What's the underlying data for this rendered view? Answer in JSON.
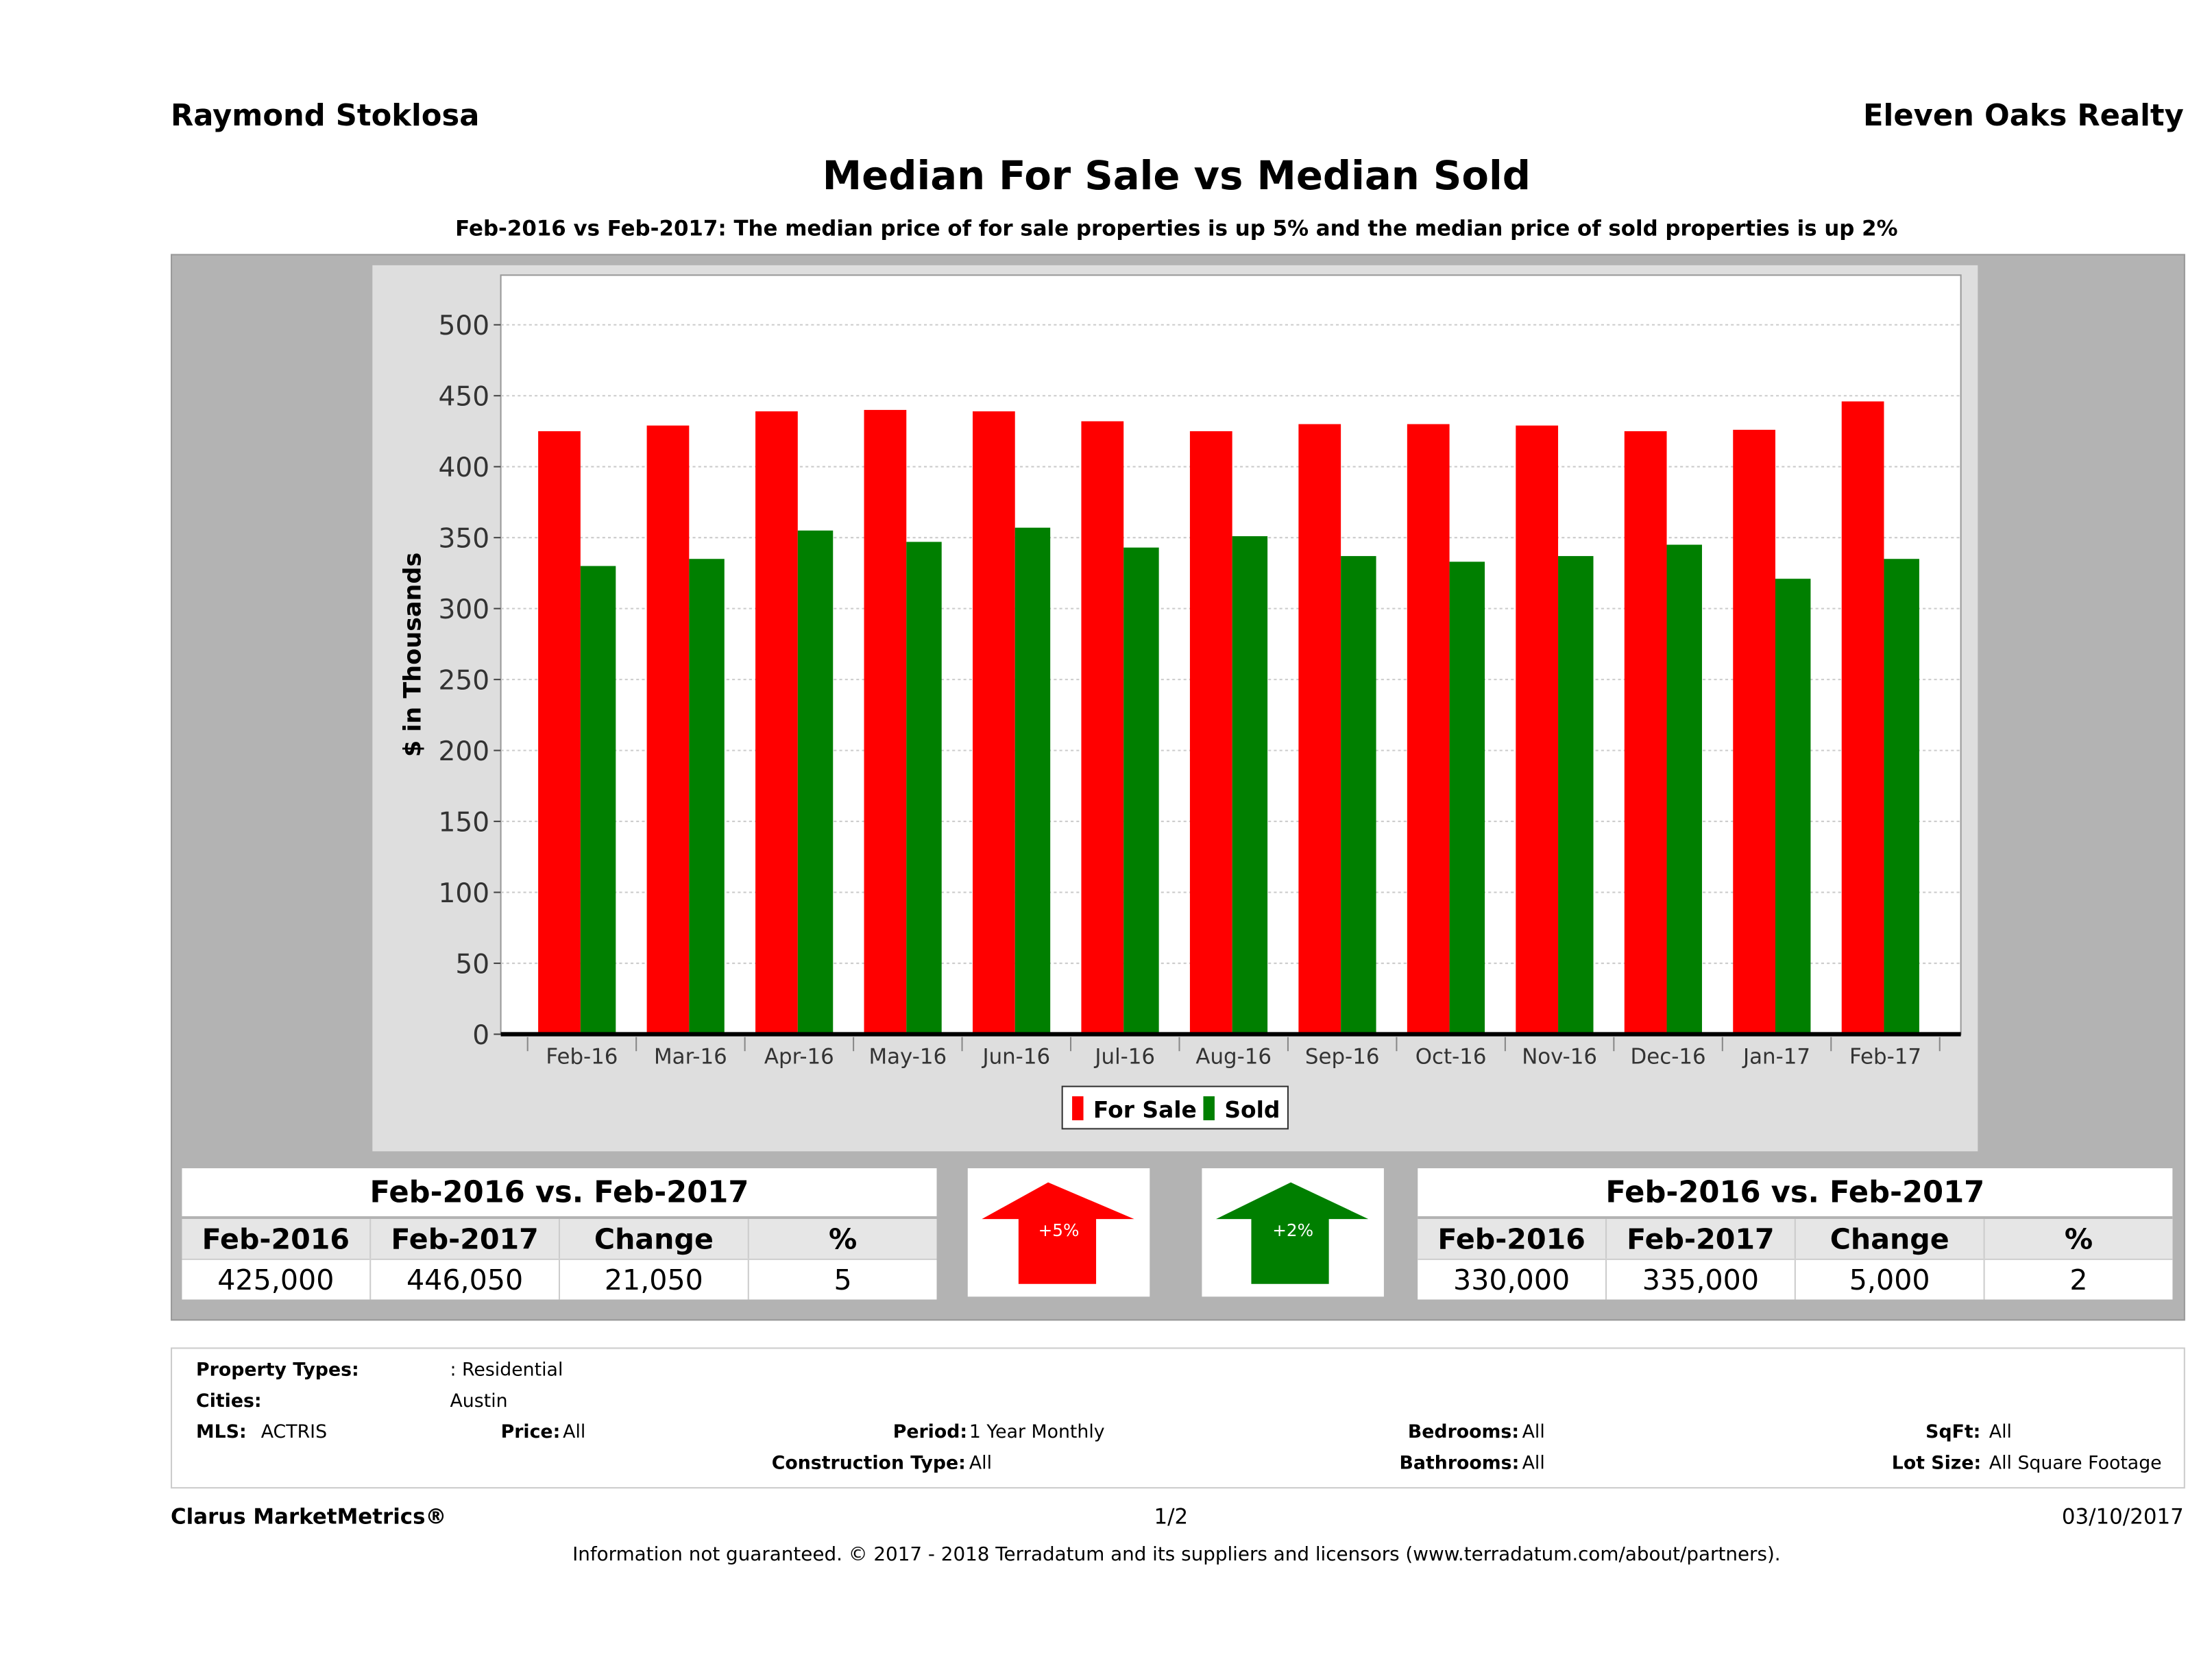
{
  "header": {
    "agent": "Raymond Stoklosa",
    "company": "Eleven Oaks Realty"
  },
  "chart_data": {
    "type": "bar",
    "title": "Median For Sale vs Median Sold",
    "subtitle": "Feb-2016 vs Feb-2017: The median price of for sale properties is up 5% and the median price of sold properties is up 2%",
    "xlabel": "",
    "ylabel": "$ in Thousands",
    "ylim": [
      0,
      535
    ],
    "yticks": [
      0,
      50,
      100,
      150,
      200,
      250,
      300,
      350,
      400,
      450,
      500
    ],
    "grid": true,
    "legend": "bottom",
    "categories": [
      "Feb-16",
      "Mar-16",
      "Apr-16",
      "May-16",
      "Jun-16",
      "Jul-16",
      "Aug-16",
      "Sep-16",
      "Oct-16",
      "Nov-16",
      "Dec-16",
      "Jan-17",
      "Feb-17"
    ],
    "series": [
      {
        "name": "For Sale",
        "color": "#ff0000",
        "values": [
          425,
          429,
          439,
          440,
          439,
          432,
          425,
          430,
          430,
          429,
          425,
          426,
          446
        ]
      },
      {
        "name": "Sold",
        "color": "#007f00",
        "values": [
          330,
          335,
          355,
          347,
          357,
          343,
          351,
          337,
          333,
          337,
          345,
          321,
          335
        ]
      }
    ]
  },
  "summary_left": {
    "heading": "Feb-2016 vs. Feb-2017",
    "columns": [
      "Feb-2016",
      "Feb-2017",
      "Change",
      "%"
    ],
    "values": [
      "425,000",
      "446,050",
      "21,050",
      "5"
    ]
  },
  "summary_right": {
    "heading": "Feb-2016 vs. Feb-2017",
    "columns": [
      "Feb-2016",
      "Feb-2017",
      "Change",
      "%"
    ],
    "values": [
      "330,000",
      "335,000",
      "5,000",
      "2"
    ]
  },
  "arrows": {
    "for_sale": {
      "label": "+5%",
      "color": "#ff0000",
      "direction": "up"
    },
    "sold": {
      "label": "+2%",
      "color": "#007f00",
      "direction": "up"
    }
  },
  "info": {
    "property_types_label": "Property Types:",
    "property_types": ": Residential",
    "cities_label": "Cities:",
    "cities": "Austin",
    "mls_label": "MLS:",
    "mls": "ACTRIS",
    "price_label": "Price:",
    "price": "All",
    "period_label": "Period:",
    "period": "1 Year Monthly",
    "bedrooms_label": "Bedrooms:",
    "bedrooms": "All",
    "sqft_label": "SqFt:",
    "sqft": "All",
    "construction_label": "Construction Type:",
    "construction": "All",
    "bathrooms_label": "Bathrooms:",
    "bathrooms": "All",
    "lot_label": "Lot Size:",
    "lot": "All Square Footage"
  },
  "footer": {
    "brand": "Clarus MarketMetrics®",
    "page": "1/2",
    "date": "03/10/2017",
    "disclaimer": "Information not guaranteed. © 2017 - 2018 Terradatum and its suppliers and licensors (www.terradatum.com/about/partners)."
  }
}
